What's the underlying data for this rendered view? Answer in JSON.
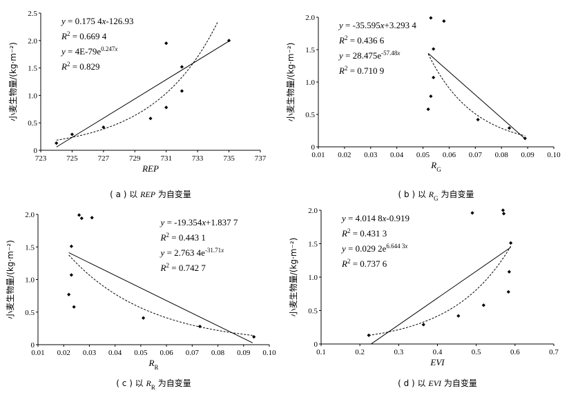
{
  "figure": {
    "ylabel": "小麦生物量/(kg·m⁻²)"
  },
  "chart_data": [
    {
      "id": "a",
      "type": "scatter",
      "caption_prefix": "( a )  以 ",
      "caption_var": "REP",
      "caption_var_sub": "",
      "caption_suffix": " 为自变量",
      "xlabel": "REP",
      "xlabel_sub": "",
      "xlabel_italic": true,
      "xlim": [
        723,
        737
      ],
      "ylim": [
        0,
        2.5
      ],
      "xticks": [
        723,
        725,
        727,
        729,
        731,
        733,
        735,
        737
      ],
      "yticks": [
        0,
        0.5,
        1.0,
        1.5,
        2.0,
        2.5
      ],
      "xtick_labels": [
        "723",
        "725",
        "727",
        "729",
        "731",
        "733",
        "735",
        "737"
      ],
      "ytick_labels": [
        "0",
        "0.5",
        "1.0",
        "1.5",
        "2.0",
        "2.5"
      ],
      "points": [
        {
          "x": 724.0,
          "y": 0.13
        },
        {
          "x": 725.0,
          "y": 0.29
        },
        {
          "x": 727.0,
          "y": 0.42
        },
        {
          "x": 730.0,
          "y": 0.58
        },
        {
          "x": 731.0,
          "y": 0.78
        },
        {
          "x": 731.0,
          "y": 1.95
        },
        {
          "x": 732.0,
          "y": 1.08
        },
        {
          "x": 732.0,
          "y": 1.52
        },
        {
          "x": 735.0,
          "y": 2.0
        }
      ],
      "linear": {
        "slope": 0.1754,
        "intercept": -126.93,
        "x_range": [
          724.0,
          735.0
        ]
      },
      "exponential": {
        "a": 4e-79,
        "b": 0.247,
        "x_range": [
          724.0,
          734.3
        ]
      },
      "equations": [
        {
          "text": "y = 0.175 4x-126.93"
        },
        {
          "text": "R² = 0.669 4"
        },
        {
          "text": "y = 4E-79e^0.247x"
        },
        {
          "text": "R² = 0.829"
        }
      ],
      "eq_position": "top-left"
    },
    {
      "id": "b",
      "type": "scatter",
      "caption_prefix": "( b )  以 ",
      "caption_var": "R",
      "caption_var_sub": "G",
      "caption_suffix": " 为自变量",
      "xlabel": "R",
      "xlabel_sub": "G",
      "xlabel_italic": true,
      "xlim": [
        0.01,
        0.1
      ],
      "ylim": [
        0,
        2.0
      ],
      "xticks": [
        0.01,
        0.02,
        0.03,
        0.04,
        0.05,
        0.06,
        0.07,
        0.08,
        0.09,
        0.1
      ],
      "yticks": [
        0,
        0.5,
        1.0,
        1.5,
        2.0
      ],
      "xtick_labels": [
        "0.01",
        "0.02",
        "0.03",
        "0.04",
        "0.05",
        "0.06",
        "0.07",
        "0.08",
        "0.09",
        "0.10"
      ],
      "ytick_labels": [
        "0",
        "0.5",
        "1.0",
        "1.5",
        "2.0"
      ],
      "points": [
        {
          "x": 0.052,
          "y": 0.58
        },
        {
          "x": 0.053,
          "y": 0.78
        },
        {
          "x": 0.054,
          "y": 1.07
        },
        {
          "x": 0.054,
          "y": 1.51
        },
        {
          "x": 0.053,
          "y": 1.99
        },
        {
          "x": 0.058,
          "y": 1.94
        },
        {
          "x": 0.071,
          "y": 0.42
        },
        {
          "x": 0.083,
          "y": 0.29
        },
        {
          "x": 0.089,
          "y": 0.13
        }
      ],
      "linear": {
        "slope": -35.595,
        "intercept": 3.2934,
        "x_range": [
          0.052,
          0.089
        ]
      },
      "exponential": {
        "a": 28.475,
        "b": -57.48,
        "x_range": [
          0.052,
          0.089
        ]
      },
      "equations": [
        {
          "text": "y = -35.595x+3.293 4"
        },
        {
          "text": "R² = 0.436 6"
        },
        {
          "text": "y = 28.475e^-57.48x"
        },
        {
          "text": "R² = 0.710 9"
        }
      ],
      "eq_position": "top-left"
    },
    {
      "id": "c",
      "type": "scatter",
      "caption_prefix": "( c )  以 ",
      "caption_var": "R",
      "caption_var_sub": "R",
      "caption_suffix": " 为自变量",
      "xlabel": "R",
      "xlabel_sub": "R",
      "xlabel_italic": true,
      "xlim": [
        0.01,
        0.1
      ],
      "ylim": [
        0,
        2.0
      ],
      "xticks": [
        0.01,
        0.02,
        0.03,
        0.04,
        0.05,
        0.06,
        0.07,
        0.08,
        0.09,
        0.1
      ],
      "yticks": [
        0,
        0.5,
        1.0,
        1.5,
        2.0
      ],
      "xtick_labels": [
        "0.01",
        "0.02",
        "0.03",
        "0.04",
        "0.05",
        "0.06",
        "0.07",
        "0.08",
        "0.09",
        "0.10"
      ],
      "ytick_labels": [
        "0",
        "0.5",
        "1.0",
        "1.5",
        "2.0"
      ],
      "points": [
        {
          "x": 0.022,
          "y": 0.77
        },
        {
          "x": 0.023,
          "y": 1.07
        },
        {
          "x": 0.023,
          "y": 1.51
        },
        {
          "x": 0.024,
          "y": 0.58
        },
        {
          "x": 0.026,
          "y": 1.99
        },
        {
          "x": 0.027,
          "y": 1.94
        },
        {
          "x": 0.031,
          "y": 1.95
        },
        {
          "x": 0.051,
          "y": 0.41
        },
        {
          "x": 0.073,
          "y": 0.28
        },
        {
          "x": 0.094,
          "y": 0.12
        }
      ],
      "linear": {
        "slope": -19.354,
        "intercept": 1.8377,
        "x_range": [
          0.022,
          0.0935
        ]
      },
      "exponential": {
        "a": 2.7634,
        "b": -31.71,
        "x_range": [
          0.022,
          0.0935
        ]
      },
      "equations": [
        {
          "text": "y = -19.354x+1.837 7"
        },
        {
          "text": "R² = 0.443 1"
        },
        {
          "text": "y = 2.763 4e^-31.71x"
        },
        {
          "text": "R² = 0.742 7"
        }
      ],
      "eq_position": "top-right"
    },
    {
      "id": "d",
      "type": "scatter",
      "caption_prefix": "( d )  以 ",
      "caption_var": "EVI",
      "caption_var_sub": "",
      "caption_suffix": " 为自变量",
      "xlabel": "EVI",
      "xlabel_sub": "",
      "xlabel_italic": true,
      "xlim": [
        0.1,
        0.7
      ],
      "ylim": [
        0,
        2.0
      ],
      "xticks": [
        0.1,
        0.2,
        0.3,
        0.4,
        0.5,
        0.6,
        0.7
      ],
      "yticks": [
        0,
        0.5,
        1.0,
        1.5,
        2.0
      ],
      "xtick_labels": [
        "0.1",
        "0.2",
        "0.3",
        "0.4",
        "0.5",
        "0.6",
        "0.7"
      ],
      "ytick_labels": [
        "0",
        "0.5",
        "1.0",
        "1.5",
        "2.0"
      ],
      "points": [
        {
          "x": 0.223,
          "y": 0.13
        },
        {
          "x": 0.364,
          "y": 0.29
        },
        {
          "x": 0.454,
          "y": 0.42
        },
        {
          "x": 0.49,
          "y": 1.96
        },
        {
          "x": 0.519,
          "y": 0.58
        },
        {
          "x": 0.569,
          "y": 2.0
        },
        {
          "x": 0.571,
          "y": 1.95
        },
        {
          "x": 0.583,
          "y": 0.78
        },
        {
          "x": 0.585,
          "y": 1.08
        },
        {
          "x": 0.589,
          "y": 1.51
        }
      ],
      "linear": {
        "slope": 4.0148,
        "intercept": -0.919,
        "x_range": [
          0.229,
          0.589
        ]
      },
      "exponential": {
        "a": 0.0292,
        "b": 6.6443,
        "x_range": [
          0.223,
          0.589
        ]
      },
      "equations": [
        {
          "text": "y = 4.014 8x-0.919"
        },
        {
          "text": "R² = 0.431 3"
        },
        {
          "text": "y = 0.029 2e^6.644 3x"
        },
        {
          "text": "R² = 0.737 6"
        }
      ],
      "eq_position": "top-left"
    }
  ]
}
